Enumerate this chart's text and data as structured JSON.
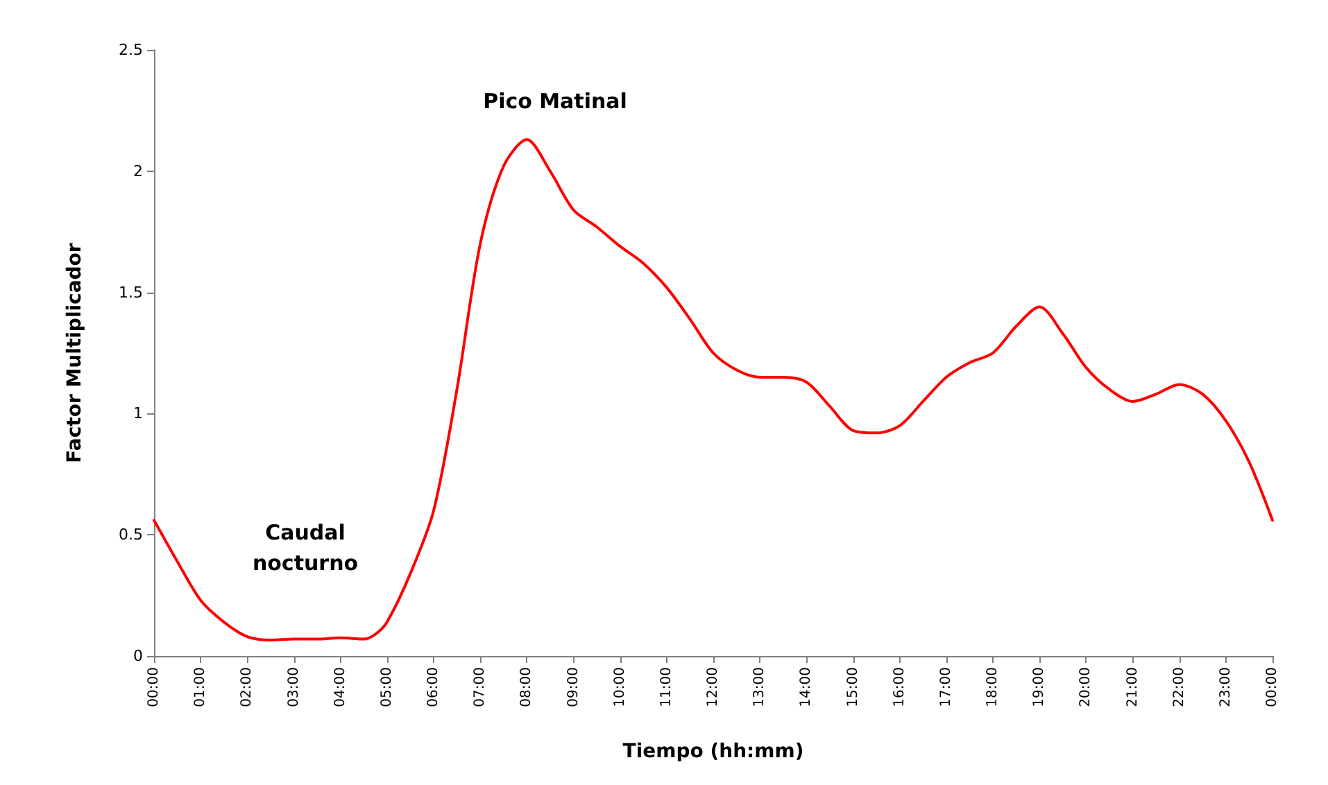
{
  "chart_data": {
    "type": "line",
    "xlabel": "Tiempo (hh:mm)",
    "ylabel": "Factor Multiplicador",
    "x": [
      0,
      0.5,
      1,
      1.5,
      2,
      2.5,
      3,
      3.5,
      4,
      4.5,
      4.75,
      5,
      5.5,
      6,
      6.5,
      7,
      7.5,
      8,
      8.5,
      9,
      9.5,
      10,
      10.5,
      11,
      11.5,
      12,
      12.5,
      13,
      13.5,
      14,
      14.5,
      15,
      15.5,
      16,
      16.5,
      17,
      17.5,
      18,
      18.5,
      19,
      19.5,
      20,
      20.5,
      21,
      21.5,
      22,
      22.5,
      23,
      23.5,
      24
    ],
    "series": [
      {
        "color": "#ff0000",
        "values": [
          0.56,
          0.39,
          0.23,
          0.14,
          0.08,
          0.066,
          0.07,
          0.07,
          0.075,
          0.07,
          0.09,
          0.14,
          0.34,
          0.6,
          1.1,
          1.7,
          2.02,
          2.13,
          2.0,
          1.84,
          1.77,
          1.69,
          1.62,
          1.52,
          1.39,
          1.25,
          1.18,
          1.15,
          1.15,
          1.13,
          1.03,
          0.93,
          0.92,
          0.95,
          1.05,
          1.15,
          1.21,
          1.25,
          1.36,
          1.44,
          1.33,
          1.19,
          1.1,
          1.05,
          1.08,
          1.12,
          1.08,
          0.97,
          0.8,
          0.56
        ]
      }
    ],
    "xlim": [
      0,
      24
    ],
    "xticks": [
      {
        "value": 0,
        "label": "00:00"
      },
      {
        "value": 1,
        "label": "01:00"
      },
      {
        "value": 2,
        "label": "02:00"
      },
      {
        "value": 3,
        "label": "03:00"
      },
      {
        "value": 4,
        "label": "04:00"
      },
      {
        "value": 5,
        "label": "05:00"
      },
      {
        "value": 6,
        "label": "06:00"
      },
      {
        "value": 7,
        "label": "07:00"
      },
      {
        "value": 8,
        "label": "08:00"
      },
      {
        "value": 9,
        "label": "09:00"
      },
      {
        "value": 10,
        "label": "10:00"
      },
      {
        "value": 11,
        "label": "11:00"
      },
      {
        "value": 12,
        "label": "12:00"
      },
      {
        "value": 13,
        "label": "13:00"
      },
      {
        "value": 14,
        "label": "14:00"
      },
      {
        "value": 15,
        "label": "15:00"
      },
      {
        "value": 16,
        "label": "16:00"
      },
      {
        "value": 17,
        "label": "17:00"
      },
      {
        "value": 18,
        "label": "18:00"
      },
      {
        "value": 19,
        "label": "19:00"
      },
      {
        "value": 20,
        "label": "20:00"
      },
      {
        "value": 21,
        "label": "21:00"
      },
      {
        "value": 22,
        "label": "22:00"
      },
      {
        "value": 23,
        "label": "23:00"
      },
      {
        "value": 24,
        "label": "00:00"
      }
    ],
    "ylim": [
      0,
      2.5
    ],
    "yticks": [
      0,
      0.5,
      1,
      1.5,
      2,
      2.5
    ],
    "annotations": [
      "Pico Matinal",
      "Caudal\nnocturno"
    ],
    "grid": false,
    "marker": "none",
    "line_style": "solid"
  }
}
